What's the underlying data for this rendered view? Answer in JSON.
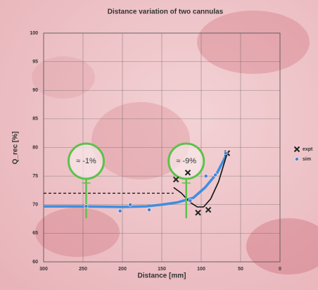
{
  "chart_data": {
    "type": "scatter-line",
    "title": "Distance variation of two cannulas",
    "xlabel": "Distance [mm]",
    "ylabel": "Q_rec [%]",
    "xlim": [
      300,
      0
    ],
    "ylim": [
      60,
      100
    ],
    "xticks": [
      300,
      250,
      200,
      150,
      100,
      50,
      0
    ],
    "yticks": [
      60,
      65,
      70,
      75,
      80,
      85,
      90,
      95,
      100
    ],
    "grid": true,
    "legend": "right",
    "series": [
      {
        "name": "expt",
        "color": "#222222",
        "marker": "x",
        "x": [
          132,
          117,
          104,
          91,
          67
        ],
        "values": [
          74.4,
          75.6,
          68.6,
          69.1,
          79
        ]
      },
      {
        "name": "sim",
        "color": "#4a7fd0",
        "marker": "o",
        "x": [
          246,
          203,
          190,
          166,
          114,
          94,
          82,
          69
        ],
        "values": [
          69.7,
          68.9,
          70,
          69.1,
          70.7,
          75,
          75.2,
          79
        ]
      }
    ],
    "lines": [
      {
        "color": "#3f8ee0",
        "dashed": false,
        "x": [
          300,
          250,
          200,
          170,
          150,
          130,
          110,
          95,
          80,
          67
        ],
        "values": [
          69.7,
          69.7,
          69.6,
          69.7,
          70,
          70.4,
          71.2,
          73,
          75.5,
          79
        ]
      },
      {
        "color": "#111111",
        "dashed": false,
        "x": [
          135,
          125,
          115,
          105,
          97,
          88,
          78,
          67
        ],
        "values": [
          73,
          72,
          70.5,
          69.6,
          69.6,
          71,
          74,
          79
        ]
      },
      {
        "color": "#111111",
        "dashed": true,
        "x": [
          300,
          135
        ],
        "values": [
          72,
          72
        ]
      }
    ],
    "annotations": [
      {
        "text": "≈ -1%",
        "x": 246,
        "color": "#5cc24a"
      },
      {
        "text": "≈ -9%",
        "x": 119,
        "color": "#5cc24a"
      }
    ]
  }
}
